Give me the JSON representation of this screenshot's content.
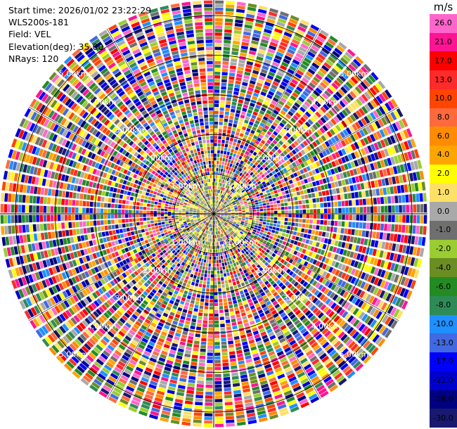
{
  "info": {
    "start_time": "Start time: 2026/01/02 23:22:29",
    "instrument": "WLS200s-181",
    "field": "Field: VEL",
    "elevation": "Elevation(deg): 35.00",
    "nrays": "NRays: 120"
  },
  "colorbar": {
    "unit": "m/s",
    "ticks": [
      "26.0",
      "21.0",
      "17.0",
      "13.0",
      "10.0",
      "8.0",
      "6.0",
      "4.0",
      "2.0",
      "1.0",
      "0.0",
      "-1.0",
      "-2.0",
      "-4.0",
      "-6.0",
      "-8.0",
      "-10.0",
      "-13.0",
      "-17.0",
      "-21.0",
      "-26.0",
      "-30.0"
    ],
    "colors": [
      "#ff66cc",
      "#ff1493",
      "#ff0000",
      "#ff2a2a",
      "#ff4500",
      "#ff6a3d",
      "#ff8c00",
      "#ffa500",
      "#ffff00",
      "#ffe066",
      "#a9a9a9",
      "#6f6f6f",
      "#9acd32",
      "#6b8e23",
      "#228b22",
      "#2e8b57",
      "#1e90ff",
      "#4169e1",
      "#0000ff",
      "#0000cd",
      "#000080",
      "#191970"
    ]
  },
  "chart_data": {
    "type": "polar-ppi",
    "field": "VEL",
    "nrays": 120,
    "elevation_deg": 35.0,
    "range_unit": "km",
    "max_range_km": 5.0,
    "ring_labels": [
      "1.00km",
      "2.00km",
      "3.00km",
      "4.00km",
      "5.00km"
    ],
    "ring_values_km": [
      1,
      2,
      3,
      4,
      5
    ],
    "label_angles_deg": [
      45,
      135,
      225,
      315
    ],
    "value_range": [
      -30,
      30
    ]
  }
}
